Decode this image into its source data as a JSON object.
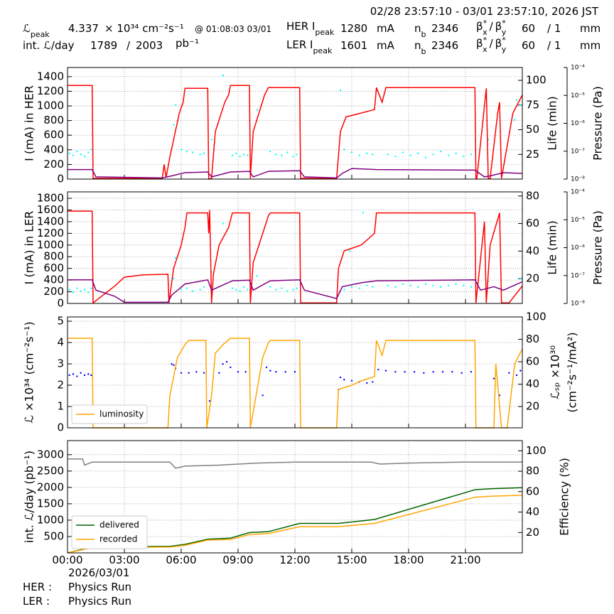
{
  "header": {
    "date_range": "02/28 23:57:10 - 03/01 23:57:10, 2026 JST",
    "lumi_symbol": "ℒ",
    "peak_sub": "peak",
    "lumi_peak": 4.337,
    "lumi_unit": "× 10³⁴ cm⁻²s⁻¹",
    "lumi_peak_time": "@ 01:08:03 03/01",
    "her_label": "HER I",
    "ler_label": "LER I",
    "her_peak": 1280,
    "ler_peak": 1601,
    "current_unit": "mA",
    "nb_symbol": "n",
    "nb_sub": "b",
    "her_nb": 2346,
    "ler_nb": 2346,
    "beta_symbol": "β",
    "beta_star": "*",
    "beta_x": "x",
    "beta_y": "y",
    "beta_sep": "/",
    "her_beta": 60,
    "ler_beta": 60,
    "her_beta_ratio": "/ 1",
    "ler_beta_ratio": "/ 1",
    "beta_unit": "mm",
    "int_lumi_label": "int. ℒ/day",
    "int_lumi_recorded": 1789,
    "int_lumi_slash": "/",
    "int_lumi_delivered": 2003,
    "int_lumi_unit": "pb⁻¹"
  },
  "footer": {
    "date": "2026/03/01",
    "her_label": "HER :",
    "her_mode": "Physics Run",
    "ler_label": "LER :",
    "ler_mode": "Physics Run"
  },
  "chart_data": [
    {
      "type": "line",
      "ylabel": "I (mA) in HER",
      "ylim": [
        0,
        1525
      ],
      "yticks": [
        0,
        200,
        400,
        600,
        800,
        1000,
        1200,
        1400
      ],
      "y2label": "Life (min)",
      "y2lim": [
        0,
        113
      ],
      "y2ticks": [
        25,
        50,
        75,
        100
      ],
      "y3label": "Pressure (Pa)",
      "y3scale": "log",
      "y3lim": [
        1e-08,
        0.0001
      ],
      "y3ticks": [
        {
          "value": 1e-08,
          "label": "10⁻⁸"
        },
        {
          "value": 1e-07,
          "label": "10⁻⁷"
        },
        {
          "value": 1e-06,
          "label": "10⁻⁶"
        },
        {
          "value": 1e-05,
          "label": "10⁻⁵"
        },
        {
          "value": 0.0001,
          "label": "10⁻⁴"
        }
      ],
      "xlim": [
        0,
        24
      ],
      "xticks": [
        0,
        3,
        6,
        9,
        12,
        15,
        18,
        21
      ],
      "grid": true,
      "series": [
        {
          "type": "scatter",
          "color": "#00ffff",
          "axis": "y2",
          "x": [
            0.1,
            0.3,
            0.5,
            0.7,
            0.9,
            1.1,
            1.25,
            5.6,
            6.0,
            6.3,
            6.6,
            7.0,
            7.2,
            8.7,
            8.9,
            9.1,
            9.3,
            9.5,
            10.7,
            11.0,
            11.3,
            11.6,
            11.9,
            12.1,
            14.6,
            15.0,
            15.4,
            15.8,
            16.1,
            16.9,
            17.3,
            17.7,
            18.1,
            18.5,
            18.9,
            19.3,
            19.7,
            20.1,
            20.5,
            20.9,
            21.3,
            22.2,
            23.6,
            23.9,
            5.7,
            7.6,
            8.2,
            10.0,
            14.4,
            23.7
          ],
          "values": [
            26,
            24,
            28,
            25,
            23,
            27,
            30,
            55,
            30,
            28,
            27,
            25,
            26,
            24,
            26,
            23,
            25,
            24,
            28,
            25,
            24,
            27,
            23,
            25,
            30,
            27,
            24,
            26,
            25,
            25,
            23,
            27,
            24,
            26,
            22,
            25,
            28,
            24,
            26,
            23,
            25,
            40,
            60,
            75,
            75,
            40,
            105,
            70,
            90,
            80
          ]
        },
        {
          "type": "line",
          "color": "red",
          "x": [
            0,
            1.3,
            1.35,
            5.0,
            5.1,
            5.2,
            5.4,
            5.9,
            6.1,
            6.2,
            7.4,
            7.45,
            7.6,
            7.8,
            8.3,
            8.5,
            8.6,
            9.6,
            9.65,
            9.8,
            10.4,
            10.6,
            12.25,
            12.3,
            14.2,
            14.4,
            14.7,
            15.3,
            16.2,
            16.3,
            16.6,
            16.8,
            21.5,
            21.55,
            21.6,
            22.1,
            22.2,
            22.3,
            22.7,
            22.8,
            22.9,
            23.5,
            24
          ],
          "values": [
            1280,
            1280,
            10,
            10,
            200,
            20,
            300,
            900,
            1050,
            1240,
            1240,
            0,
            10,
            650,
            1050,
            1150,
            1280,
            1280,
            10,
            650,
            1150,
            1250,
            1250,
            10,
            10,
            650,
            850,
            890,
            950,
            1250,
            1050,
            1250,
            1250,
            10,
            10,
            1240,
            10,
            10,
            900,
            1050,
            10,
            900,
            1150
          ]
        },
        {
          "type": "line",
          "color": "purple",
          "axis": "y3",
          "x": [
            0,
            1.3,
            1.5,
            5,
            5.5,
            6.2,
            7.4,
            7.6,
            8.6,
            9.6,
            9.8,
            10.6,
            12.25,
            12.5,
            14.2,
            14.5,
            15.0,
            16.3,
            21.5,
            22.0,
            22.3,
            23.0,
            24
          ],
          "values": [
            2.2e-08,
            2.2e-08,
            1.2e-08,
            1.1e-08,
            1.3e-08,
            1.7e-08,
            1.8e-08,
            1.2e-08,
            1.8e-08,
            1.9e-08,
            1.2e-08,
            1.9e-08,
            2e-08,
            1.2e-08,
            1.1e-08,
            1.6e-08,
            2.4e-08,
            2.2e-08,
            2.1e-08,
            1.2e-08,
            1.3e-08,
            1.7e-08,
            1.6e-08
          ]
        }
      ]
    },
    {
      "type": "line",
      "ylabel": "I (mA) in LER",
      "ylim": [
        0,
        1910
      ],
      "yticks": [
        0,
        200,
        400,
        600,
        800,
        1000,
        1200,
        1400,
        1600,
        1800
      ],
      "y2label": "Life (min)",
      "y2lim": [
        2,
        83
      ],
      "y2ticks": [
        20,
        40,
        60,
        80
      ],
      "y3label": "Pressure (Pa)",
      "y3scale": "log",
      "y3lim": [
        1e-08,
        0.0001
      ],
      "y3ticks": [
        {
          "value": 1e-08,
          "label": "10⁻⁸"
        },
        {
          "value": 1e-07,
          "label": "10⁻⁷"
        },
        {
          "value": 1e-06,
          "label": "10⁻⁶"
        },
        {
          "value": 1e-05,
          "label": "10⁻⁵"
        },
        {
          "value": 0.0001,
          "label": "10⁻⁴"
        }
      ],
      "xlim": [
        0,
        24
      ],
      "xticks": [
        0,
        3,
        6,
        9,
        12,
        15,
        18,
        21
      ],
      "grid": true,
      "series": [
        {
          "type": "scatter",
          "color": "#00ffff",
          "axis": "y2",
          "x": [
            0.1,
            0.3,
            0.5,
            0.7,
            0.9,
            1.1,
            1.25,
            5.6,
            6.0,
            6.3,
            6.6,
            7.0,
            7.2,
            8.7,
            8.9,
            9.1,
            9.3,
            9.5,
            10.7,
            11.0,
            11.3,
            11.6,
            11.9,
            12.1,
            14.6,
            15.0,
            15.4,
            15.8,
            16.1,
            16.9,
            17.3,
            17.7,
            18.1,
            18.5,
            18.9,
            19.3,
            19.7,
            20.1,
            20.5,
            20.9,
            21.3,
            22.2,
            23.6,
            23.9,
            5.7,
            7.6,
            8.2,
            10.0,
            14.9,
            15.6
          ],
          "values": [
            12,
            10,
            13,
            11,
            12,
            10,
            13,
            20,
            12,
            13,
            11,
            12,
            14,
            13,
            12,
            11,
            14,
            12,
            14,
            12,
            13,
            11,
            12,
            13,
            12,
            14,
            13,
            15,
            14,
            15,
            14,
            16,
            15,
            14,
            16,
            15,
            14,
            15,
            16,
            15,
            14,
            18,
            15,
            20,
            35,
            25,
            60,
            22,
            40,
            68
          ]
        },
        {
          "type": "line",
          "color": "red",
          "x": [
            0,
            1.3,
            1.35,
            2.5,
            3.0,
            4.0,
            5.3,
            5.35,
            5.6,
            6.0,
            6.2,
            6.3,
            7.4,
            7.45,
            7.5,
            7.6,
            7.7,
            8.0,
            8.5,
            8.7,
            9.6,
            9.65,
            9.8,
            10.3,
            10.6,
            10.7,
            12.25,
            12.3,
            14.2,
            14.3,
            14.6,
            15.5,
            16.2,
            16.3,
            16.4,
            21.5,
            21.55,
            22.0,
            22.1,
            22.3,
            22.8,
            22.9,
            23.3,
            24
          ],
          "values": [
            1580,
            1580,
            10,
            300,
            450,
            490,
            500,
            10,
            600,
            1000,
            1300,
            1550,
            1550,
            1200,
            1600,
            10,
            500,
            1000,
            1300,
            1550,
            1550,
            10,
            700,
            1200,
            1500,
            1550,
            1550,
            10,
            10,
            600,
            900,
            1000,
            1200,
            1550,
            1550,
            1550,
            10,
            1400,
            10,
            1000,
            1550,
            10,
            10,
            300
          ]
        },
        {
          "type": "line",
          "color": "purple",
          "axis": "y3",
          "x": [
            0,
            1.3,
            1.5,
            2.5,
            3.0,
            5.3,
            5.5,
            6.2,
            7.4,
            7.6,
            8.7,
            9.6,
            9.8,
            10.7,
            12.25,
            12.5,
            14.2,
            14.5,
            15.5,
            16.3,
            21.5,
            21.8,
            22.5,
            23.0,
            24
          ],
          "values": [
            7e-08,
            7e-08,
            3e-08,
            1.8e-08,
            1.1e-08,
            1.1e-08,
            2e-08,
            5e-08,
            7e-08,
            3e-08,
            6.5e-08,
            6.8e-08,
            3e-08,
            6.5e-08,
            7e-08,
            3e-08,
            1.5e-08,
            4e-08,
            5.5e-08,
            6.5e-08,
            7e-08,
            3e-08,
            4e-08,
            3e-08,
            6e-08
          ]
        }
      ]
    },
    {
      "type": "line",
      "ylabel": "ℒ ×10³⁴ (cm⁻²s⁻¹)",
      "ylim": [
        0,
        5.2
      ],
      "yticks": [
        0,
        1,
        2,
        3,
        4,
        5
      ],
      "y2label": [
        "ℒₛₚ ×10³⁰",
        "(cm⁻²s⁻¹/mA²)"
      ],
      "y2lim": [
        1,
        100
      ],
      "y2ticks": [
        20,
        40,
        60,
        80,
        100
      ],
      "xlim": [
        0,
        24
      ],
      "xticks": [
        0,
        3,
        6,
        9,
        12,
        15,
        18,
        21
      ],
      "grid": true,
      "legend": "lower left",
      "series": [
        {
          "type": "scatter",
          "color": "blue",
          "axis": "y2",
          "x": [
            0.1,
            0.3,
            0.5,
            0.7,
            0.9,
            1.1,
            1.25,
            5.5,
            5.6,
            5.7,
            6.0,
            6.4,
            6.8,
            7.2,
            8.2,
            8.4,
            8.6,
            9.0,
            9.4,
            10.5,
            10.7,
            11.0,
            11.5,
            12.0,
            14.4,
            14.6,
            15.0,
            15.4,
            15.8,
            16.1,
            16.4,
            16.8,
            17.3,
            17.8,
            18.3,
            18.8,
            19.3,
            19.8,
            20.3,
            20.8,
            21.3,
            22.5,
            22.8,
            23.3,
            23.7,
            23.9,
            7.5,
            10.3,
            14.3,
            8.0
          ],
          "values": [
            48,
            49,
            47,
            50,
            48,
            49,
            48,
            58,
            57,
            54,
            50,
            50,
            51,
            50,
            58,
            60,
            55,
            51,
            51,
            55,
            52,
            51,
            51,
            51,
            46,
            44,
            43,
            42,
            41,
            42,
            53,
            52,
            51,
            51,
            51,
            50,
            51,
            51,
            51,
            50,
            51,
            45,
            30,
            50,
            48,
            52,
            25,
            30,
            35,
            50
          ]
        },
        {
          "type": "line",
          "name": "luminosity",
          "color": "orange",
          "x": [
            0,
            1.3,
            1.35,
            5.3,
            5.4,
            5.8,
            6.2,
            6.4,
            7.3,
            7.35,
            7.6,
            7.8,
            8.2,
            8.6,
            9.6,
            9.65,
            10.3,
            10.6,
            10.7,
            12.25,
            12.3,
            14.2,
            14.3,
            15.0,
            15.5,
            16.2,
            16.3,
            16.6,
            16.8,
            21.5,
            21.55,
            22.5,
            22.6,
            22.9,
            23.2,
            23.6,
            24
          ],
          "values": [
            4.2,
            4.2,
            0,
            0,
            1.5,
            3.3,
            3.9,
            4.1,
            4.1,
            0,
            1.5,
            3.5,
            3.9,
            4.2,
            4.2,
            0,
            3.3,
            4.0,
            4.1,
            4.1,
            0,
            0,
            1.8,
            2.0,
            2.2,
            2.4,
            4.1,
            3.4,
            4.1,
            4.1,
            0,
            0,
            3.0,
            0,
            0,
            3.0,
            3.7
          ]
        }
      ]
    },
    {
      "type": "line",
      "ylabel": "int. ℒ/day (pb⁻¹)",
      "ylim": [
        0,
        3430
      ],
      "yticks": [
        500,
        1000,
        1500,
        2000,
        2500,
        3000
      ],
      "y2label": "Efficiency (%)",
      "y2lim": [
        0,
        110
      ],
      "y2ticks": [
        20,
        40,
        60,
        80,
        100
      ],
      "xlim": [
        0,
        24
      ],
      "xticks": [
        {
          "value": 0,
          "label": "00:00"
        },
        {
          "value": 3,
          "label": "03:00"
        },
        {
          "value": 6,
          "label": "06:00"
        },
        {
          "value": 9,
          "label": "09:00"
        },
        {
          "value": 12,
          "label": "12:00"
        },
        {
          "value": 15,
          "label": "15:00"
        },
        {
          "value": 18,
          "label": "18:00"
        },
        {
          "value": 21,
          "label": "21:00"
        }
      ],
      "grid": true,
      "legend": "lower left",
      "series": [
        {
          "type": "line",
          "color": "gray",
          "axis": "y2",
          "x": [
            0,
            0.8,
            0.9,
            1.3,
            5.4,
            5.7,
            6.2,
            8.0,
            10,
            12,
            14,
            16,
            16.5,
            18,
            21,
            24
          ],
          "values": [
            92,
            92,
            86,
            89,
            89,
            83,
            85,
            86,
            88,
            89,
            89,
            89,
            87,
            88,
            89,
            89
          ]
        },
        {
          "type": "line",
          "name": "delivered",
          "color": "darkgreen",
          "x": [
            0,
            1.3,
            5.4,
            6.2,
            7.4,
            8.6,
            9.6,
            10.6,
            12.25,
            14.3,
            16.2,
            21.5,
            22.3,
            24
          ],
          "values": [
            0,
            180,
            200,
            260,
            420,
            450,
            620,
            650,
            900,
            900,
            1020,
            1930,
            1960,
            1990
          ]
        },
        {
          "type": "line",
          "name": "recorded",
          "color": "orange",
          "x": [
            0,
            1.3,
            5.4,
            6.2,
            7.4,
            8.6,
            9.6,
            10.6,
            12.25,
            14.3,
            16.2,
            21.5,
            22.3,
            24
          ],
          "values": [
            0,
            160,
            180,
            230,
            390,
            410,
            560,
            590,
            800,
            800,
            900,
            1700,
            1730,
            1760
          ]
        }
      ]
    }
  ]
}
